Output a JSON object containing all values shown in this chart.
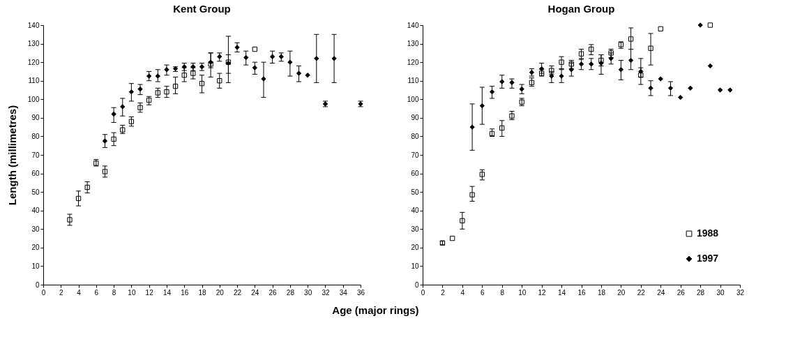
{
  "chart_data": [
    {
      "type": "scatter",
      "title": "Kent Group",
      "xlabel": "Age (major rings)",
      "ylabel": "Length (millimetres)",
      "xlim": [
        0,
        36
      ],
      "xticks": [
        0,
        2,
        4,
        6,
        8,
        10,
        12,
        14,
        16,
        18,
        20,
        22,
        24,
        26,
        28,
        30,
        32,
        34,
        36
      ],
      "ylim": [
        0,
        140
      ],
      "yticks": [
        0,
        10,
        20,
        30,
        40,
        50,
        60,
        70,
        80,
        90,
        100,
        110,
        120,
        130,
        140
      ],
      "grid": false,
      "legend": false,
      "series": [
        {
          "color": "#000000",
          "marker": "square",
          "x": [
            3,
            4,
            5,
            6,
            7,
            8,
            9,
            10,
            11,
            12,
            13,
            14,
            15,
            16,
            17,
            18,
            19,
            20,
            21,
            24
          ],
          "values": [
            35,
            46.5,
            52.5,
            65.5,
            61,
            78.5,
            83.5,
            88,
            95.5,
            99.5,
            103.5,
            104,
            107,
            113,
            114,
            108.5,
            119,
            110,
            120,
            127
          ],
          "errors": [
            [
              32,
              38
            ],
            [
              42.5,
              50.5
            ],
            [
              49.5,
              55.5
            ],
            [
              64,
              67.5
            ],
            [
              58,
              64
            ],
            [
              75,
              82
            ],
            [
              81.5,
              86
            ],
            [
              85.5,
              90.5
            ],
            [
              93,
              98
            ],
            [
              97,
              101.5
            ],
            [
              101,
              106
            ],
            [
              101,
              107
            ],
            [
              103,
              112
            ],
            [
              109.5,
              117
            ],
            [
              111,
              117
            ],
            [
              103.5,
              113
            ],
            [
              112,
              125
            ],
            [
              106,
              114
            ],
            [
              109,
              134
            ],
            null
          ]
        },
        {
          "color": "#000000",
          "marker": "diamond",
          "x": [
            7,
            8,
            9,
            10,
            11,
            12,
            13,
            14,
            15,
            16,
            17,
            18,
            19,
            20,
            21,
            22,
            23,
            24,
            25,
            26,
            27,
            28,
            29,
            30,
            31,
            32,
            33,
            36
          ],
          "values": [
            77.5,
            92,
            96,
            104,
            105.5,
            112.5,
            112.5,
            116,
            116.5,
            117.5,
            117.5,
            117.5,
            120,
            123,
            119.5,
            128,
            122.5,
            117,
            111,
            123,
            123,
            120,
            114,
            113,
            122,
            97.5,
            122,
            97.5
          ],
          "errors": [
            [
              74,
              81
            ],
            [
              87.5,
              95.5
            ],
            [
              91,
              100.5
            ],
            [
              99,
              108.5
            ],
            [
              102.5,
              108
            ],
            [
              110,
              115
            ],
            [
              109.5,
              116
            ],
            [
              113,
              118.5
            ],
            [
              115,
              117.5
            ],
            [
              115.5,
              119.5
            ],
            [
              115.5,
              119.5
            ],
            [
              115.5,
              119.5
            ],
            [
              117,
              125
            ],
            [
              120.5,
              125
            ],
            [
              114,
              124
            ],
            [
              125.5,
              130.5
            ],
            [
              118.5,
              126
            ],
            [
              113.5,
              120
            ],
            [
              101,
              120
            ],
            [
              119.5,
              126
            ],
            [
              120.5,
              125
            ],
            [
              112.5,
              126
            ],
            [
              109.5,
              118
            ],
            null,
            [
              109,
              135
            ],
            [
              96,
              99
            ],
            [
              109,
              135
            ],
            [
              96,
              99
            ]
          ]
        }
      ]
    },
    {
      "type": "scatter",
      "title": "Hogan Group",
      "xlim": [
        0,
        32
      ],
      "xticks": [
        0,
        2,
        4,
        6,
        8,
        10,
        12,
        14,
        16,
        18,
        20,
        22,
        24,
        26,
        28,
        30,
        32
      ],
      "ylim": [
        0,
        140
      ],
      "yticks": [
        0,
        10,
        20,
        30,
        40,
        50,
        60,
        70,
        80,
        90,
        100,
        110,
        120,
        130,
        140
      ],
      "grid": false,
      "legend": "bottom right",
      "series": [
        {
          "name": "1988",
          "color": "#000000",
          "marker": "square",
          "x": [
            2,
            3,
            4,
            5,
            6,
            7,
            8,
            9,
            10,
            11,
            12,
            13,
            14,
            15,
            16,
            17,
            18,
            19,
            20,
            21,
            22,
            23,
            24,
            29
          ],
          "values": [
            22.5,
            25,
            34.5,
            48.5,
            59.5,
            81.5,
            84.5,
            91,
            98.5,
            109,
            114,
            115.5,
            120,
            119,
            124.5,
            127,
            121,
            125,
            129.5,
            132.5,
            113,
            127.5,
            138,
            140
          ],
          "errors": [
            [
              21.5,
              23.5
            ],
            null,
            [
              30,
              39
            ],
            [
              45,
              53
            ],
            [
              56.5,
              62
            ],
            [
              80,
              84
            ],
            [
              80,
              88.5
            ],
            [
              89,
              93.5
            ],
            [
              96.5,
              100.5
            ],
            [
              107,
              111.5
            ],
            [
              112.5,
              116
            ],
            [
              113.5,
              118
            ],
            [
              116.5,
              123
            ],
            [
              116.5,
              121
            ],
            [
              121.5,
              127
            ],
            [
              124,
              129.5
            ],
            [
              118,
              124
            ],
            [
              122.5,
              127
            ],
            [
              127.5,
              131
            ],
            [
              127,
              138.5
            ],
            [
              108,
              122
            ],
            [
              118.5,
              135.5
            ],
            null,
            null
          ]
        },
        {
          "name": "1997",
          "color": "#000000",
          "marker": "diamond",
          "x": [
            5,
            6,
            7,
            8,
            9,
            10,
            11,
            12,
            13,
            14,
            15,
            16,
            17,
            18,
            19,
            20,
            21,
            22,
            23,
            24,
            25,
            26,
            27,
            28,
            29,
            30,
            31
          ],
          "values": [
            85,
            96.5,
            104,
            109.5,
            109,
            105.5,
            114.5,
            116.5,
            112.5,
            112.5,
            116,
            119,
            119,
            119.5,
            122,
            116,
            121,
            115,
            106,
            111,
            106,
            101,
            106,
            140,
            118,
            105,
            105
          ],
          "errors": [
            [
              72.5,
              97.5
            ],
            [
              86.5,
              106.5
            ],
            [
              100.5,
              107
            ],
            [
              106,
              113
            ],
            [
              106,
              111
            ],
            [
              103,
              108
            ],
            [
              112.5,
              116.5
            ],
            [
              114,
              119.5
            ],
            [
              109,
              115
            ],
            [
              109,
              116
            ],
            [
              112.5,
              119.5
            ],
            [
              116,
              122
            ],
            [
              116,
              122
            ],
            [
              113.5,
              124
            ],
            [
              119,
              125
            ],
            [
              110.5,
              121
            ],
            [
              116,
              127
            ],
            [
              112,
              117
            ],
            [
              102,
              110
            ],
            null,
            [
              102,
              109.5
            ],
            null,
            null,
            null,
            null,
            null,
            null
          ]
        }
      ]
    }
  ]
}
